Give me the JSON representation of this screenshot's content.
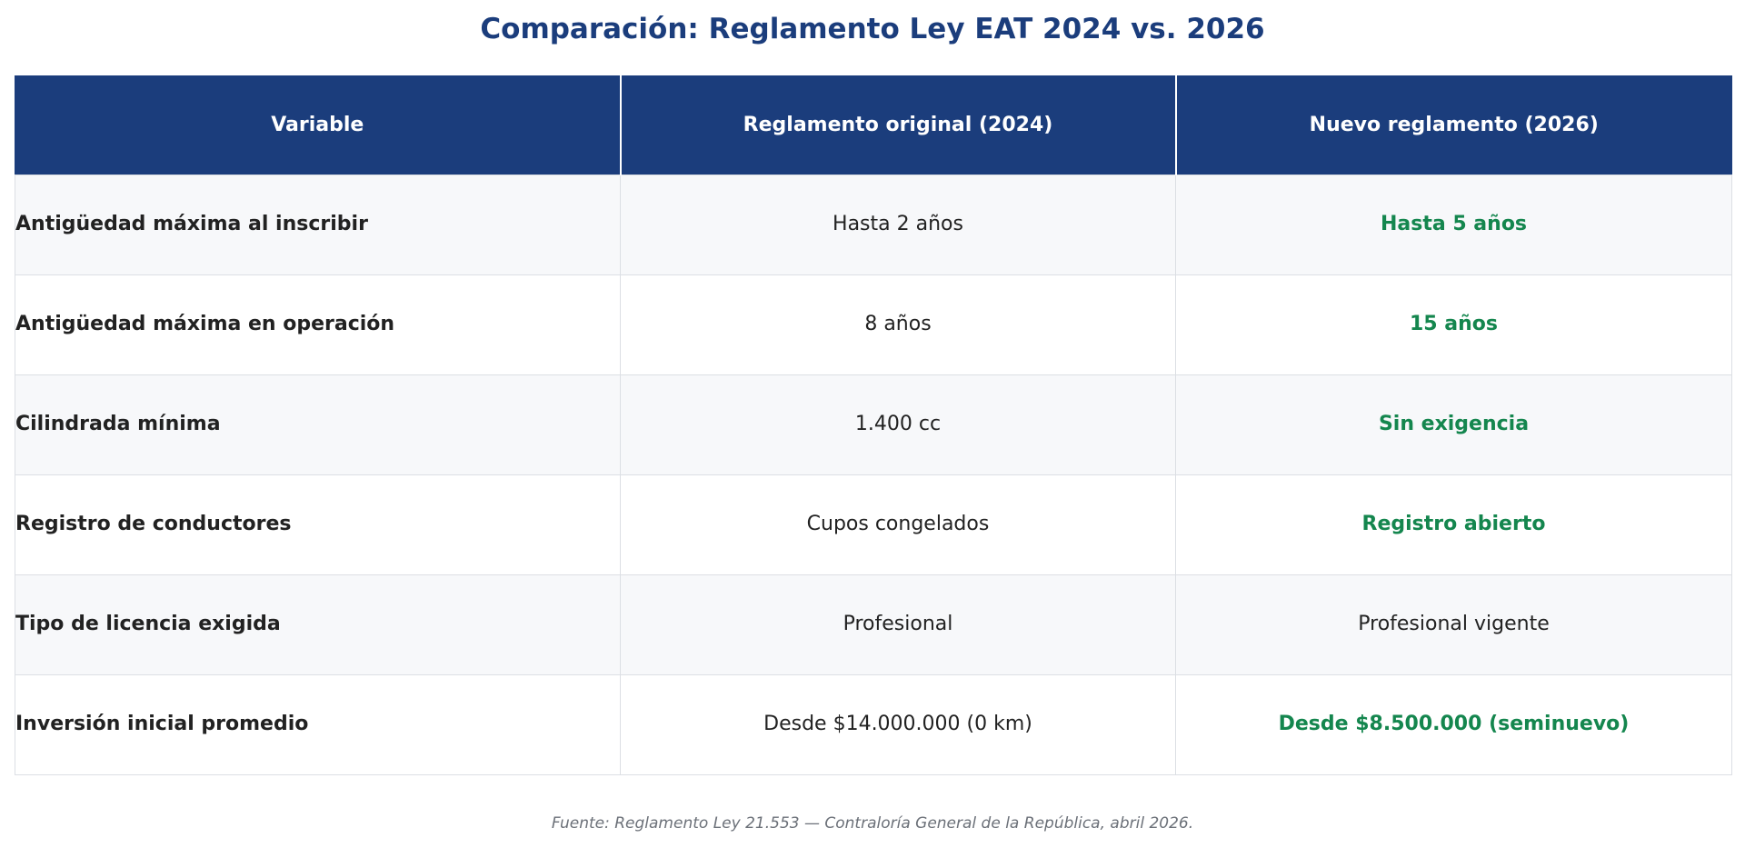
{
  "chart_data": {
    "type": "table",
    "title": "Comparación: Reglamento Ley EAT 2024 vs. 2026",
    "columns": [
      "Variable",
      "Reglamento original (2024)",
      "Nuevo reglamento (2026)"
    ],
    "rows": [
      {
        "variable": "Antigüedad máxima al inscribir",
        "original": "Hasta 2 años",
        "nuevo": "Hasta 5 años",
        "nuevo_highlight": true
      },
      {
        "variable": "Antigüedad máxima en operación",
        "original": "8 años",
        "nuevo": "15 años",
        "nuevo_highlight": true
      },
      {
        "variable": "Cilindrada mínima",
        "original": "1.400 cc",
        "nuevo": "Sin exigencia",
        "nuevo_highlight": true
      },
      {
        "variable": "Registro de conductores",
        "original": "Cupos congelados",
        "nuevo": "Registro abierto",
        "nuevo_highlight": true
      },
      {
        "variable": "Tipo de licencia exigida",
        "original": "Profesional",
        "nuevo": "Profesional vigente",
        "nuevo_highlight": false
      },
      {
        "variable": "Inversión inicial promedio",
        "original": "Desde $14.000.000 (0 km)",
        "nuevo": "Desde $8.500.000 (seminuevo)",
        "nuevo_highlight": true
      }
    ],
    "source": "Fuente: Reglamento Ley 21.553 — Contraloría General de la República, abril 2026.",
    "colors": {
      "header_bg": "#1b3d7c",
      "title": "#1b3d7c",
      "highlight": "#14864e",
      "row_alt": "#f7f8fa"
    }
  }
}
